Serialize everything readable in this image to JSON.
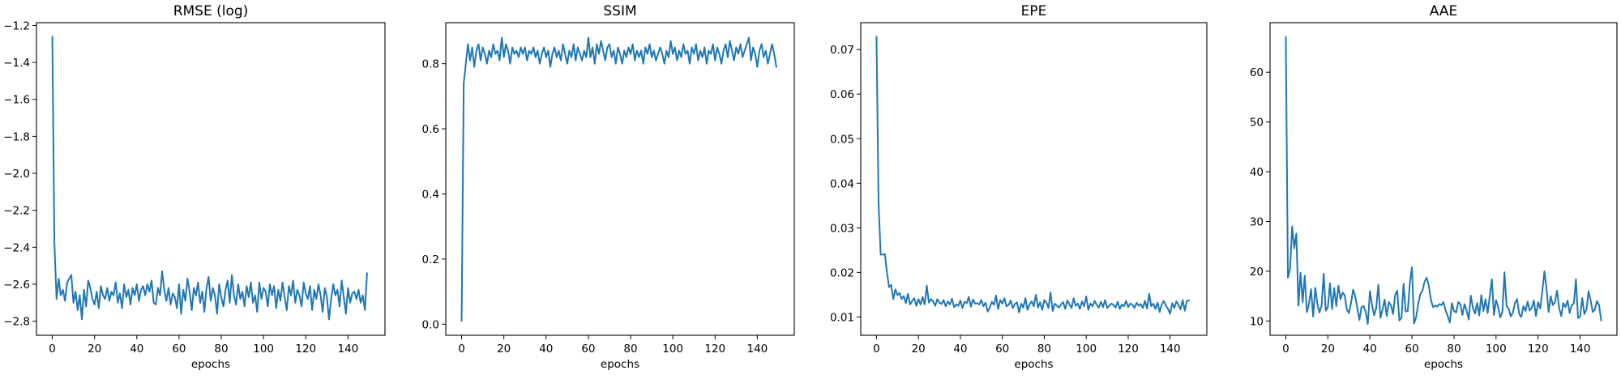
{
  "figure": {
    "background": "#ffffff",
    "line_color": "#1f77b4"
  },
  "chart_data": [
    {
      "type": "line",
      "title": "RMSE (log)",
      "xlabel": "epochs",
      "ylabel": "",
      "xlim": [
        -7.5,
        157.5
      ],
      "ylim": [
        -2.876,
        -1.185
      ],
      "xticks": [
        0,
        20,
        40,
        60,
        80,
        100,
        120,
        140
      ],
      "xtick_labels": [
        "0",
        "20",
        "40",
        "60",
        "80",
        "100",
        "120",
        "140"
      ],
      "yticks": [
        -2.8,
        -2.6,
        -2.4,
        -2.2,
        -2.0,
        -1.8,
        -1.6,
        -1.4,
        -1.2
      ],
      "ytick_labels": [
        "−2.8",
        "−2.6",
        "−2.4",
        "−2.2",
        "−2.0",
        "−1.8",
        "−1.6",
        "−1.4",
        "−1.2"
      ],
      "x_start": 0,
      "x_step": 1,
      "values": [
        -1.26,
        -2.38,
        -2.68,
        -2.57,
        -2.66,
        -2.63,
        -2.69,
        -2.59,
        -2.57,
        -2.55,
        -2.7,
        -2.64,
        -2.74,
        -2.66,
        -2.79,
        -2.63,
        -2.72,
        -2.58,
        -2.62,
        -2.68,
        -2.71,
        -2.64,
        -2.73,
        -2.61,
        -2.66,
        -2.68,
        -2.62,
        -2.69,
        -2.64,
        -2.66,
        -2.59,
        -2.7,
        -2.65,
        -2.73,
        -2.6,
        -2.67,
        -2.63,
        -2.71,
        -2.62,
        -2.66,
        -2.6,
        -2.69,
        -2.63,
        -2.61,
        -2.66,
        -2.6,
        -2.64,
        -2.58,
        -2.7,
        -2.71,
        -2.62,
        -2.66,
        -2.53,
        -2.63,
        -2.69,
        -2.62,
        -2.71,
        -2.65,
        -2.67,
        -2.73,
        -2.6,
        -2.76,
        -2.63,
        -2.69,
        -2.57,
        -2.64,
        -2.74,
        -2.62,
        -2.66,
        -2.59,
        -2.7,
        -2.64,
        -2.75,
        -2.62,
        -2.56,
        -2.69,
        -2.62,
        -2.66,
        -2.76,
        -2.6,
        -2.67,
        -2.72,
        -2.63,
        -2.58,
        -2.7,
        -2.55,
        -2.66,
        -2.71,
        -2.6,
        -2.68,
        -2.64,
        -2.72,
        -2.61,
        -2.67,
        -2.59,
        -2.7,
        -2.66,
        -2.75,
        -2.59,
        -2.68,
        -2.62,
        -2.64,
        -2.72,
        -2.6,
        -2.66,
        -2.61,
        -2.73,
        -2.63,
        -2.69,
        -2.59,
        -2.67,
        -2.74,
        -2.61,
        -2.66,
        -2.58,
        -2.7,
        -2.63,
        -2.66,
        -2.72,
        -2.59,
        -2.65,
        -2.68,
        -2.61,
        -2.74,
        -2.63,
        -2.68,
        -2.6,
        -2.66,
        -2.75,
        -2.62,
        -2.67,
        -2.79,
        -2.68,
        -2.6,
        -2.66,
        -2.63,
        -2.72,
        -2.58,
        -2.67,
        -2.76,
        -2.62,
        -2.7,
        -2.65,
        -2.64,
        -2.68,
        -2.63,
        -2.7,
        -2.66,
        -2.74,
        -2.54
      ]
    },
    {
      "type": "line",
      "title": "SSIM",
      "xlabel": "epochs",
      "ylabel": "",
      "xlim": [
        -7.5,
        157.5
      ],
      "ylim": [
        -0.034,
        0.926
      ],
      "xticks": [
        0,
        20,
        40,
        60,
        80,
        100,
        120,
        140
      ],
      "xtick_labels": [
        "0",
        "20",
        "40",
        "60",
        "80",
        "100",
        "120",
        "140"
      ],
      "yticks": [
        0.0,
        0.2,
        0.4,
        0.6,
        0.8
      ],
      "ytick_labels": [
        "0.0",
        "0.2",
        "0.4",
        "0.6",
        "0.8"
      ],
      "x_start": 0,
      "x_step": 1,
      "values": [
        0.01,
        0.74,
        0.8,
        0.86,
        0.81,
        0.85,
        0.79,
        0.84,
        0.86,
        0.81,
        0.85,
        0.83,
        0.8,
        0.84,
        0.82,
        0.86,
        0.83,
        0.84,
        0.81,
        0.88,
        0.82,
        0.86,
        0.84,
        0.8,
        0.85,
        0.83,
        0.84,
        0.82,
        0.85,
        0.83,
        0.85,
        0.81,
        0.84,
        0.83,
        0.85,
        0.82,
        0.84,
        0.8,
        0.83,
        0.85,
        0.82,
        0.84,
        0.79,
        0.83,
        0.85,
        0.82,
        0.84,
        0.81,
        0.86,
        0.83,
        0.8,
        0.84,
        0.82,
        0.86,
        0.81,
        0.85,
        0.83,
        0.81,
        0.84,
        0.82,
        0.88,
        0.82,
        0.85,
        0.8,
        0.86,
        0.83,
        0.87,
        0.84,
        0.81,
        0.85,
        0.86,
        0.82,
        0.84,
        0.8,
        0.85,
        0.83,
        0.8,
        0.84,
        0.82,
        0.85,
        0.83,
        0.86,
        0.81,
        0.84,
        0.82,
        0.84,
        0.8,
        0.85,
        0.83,
        0.86,
        0.82,
        0.84,
        0.81,
        0.83,
        0.85,
        0.83,
        0.8,
        0.84,
        0.82,
        0.87,
        0.83,
        0.85,
        0.81,
        0.84,
        0.82,
        0.86,
        0.83,
        0.84,
        0.8,
        0.85,
        0.83,
        0.86,
        0.81,
        0.84,
        0.82,
        0.85,
        0.8,
        0.84,
        0.83,
        0.86,
        0.81,
        0.85,
        0.83,
        0.8,
        0.84,
        0.86,
        0.82,
        0.87,
        0.84,
        0.81,
        0.85,
        0.83,
        0.86,
        0.82,
        0.84,
        0.86,
        0.88,
        0.81,
        0.85,
        0.83,
        0.79,
        0.84,
        0.86,
        0.82,
        0.84,
        0.8,
        0.83,
        0.86,
        0.83,
        0.79
      ]
    },
    {
      "type": "line",
      "title": "EPE",
      "xlabel": "epochs",
      "ylabel": "",
      "xlim": [
        -7.5,
        157.5
      ],
      "ylim": [
        0.00589,
        0.07603
      ],
      "xticks": [
        0,
        20,
        40,
        60,
        80,
        100,
        120,
        140
      ],
      "xtick_labels": [
        "0",
        "20",
        "40",
        "60",
        "80",
        "100",
        "120",
        "140"
      ],
      "yticks": [
        0.01,
        0.02,
        0.03,
        0.04,
        0.05,
        0.06,
        0.07
      ],
      "ytick_labels": [
        "0.01",
        "0.02",
        "0.03",
        "0.04",
        "0.05",
        "0.06",
        "0.07"
      ],
      "x_start": 0,
      "x_step": 1,
      "values": [
        0.0729,
        0.0355,
        0.024,
        0.024,
        0.0241,
        0.02,
        0.0167,
        0.0172,
        0.014,
        0.0162,
        0.0149,
        0.0154,
        0.014,
        0.0147,
        0.0131,
        0.0152,
        0.0128,
        0.0136,
        0.0142,
        0.0125,
        0.014,
        0.0128,
        0.0145,
        0.0128,
        0.017,
        0.0132,
        0.014,
        0.0135,
        0.0125,
        0.014,
        0.0132,
        0.0129,
        0.0138,
        0.0124,
        0.0135,
        0.0128,
        0.0141,
        0.0122,
        0.0128,
        0.0125,
        0.0137,
        0.012,
        0.0134,
        0.0131,
        0.0145,
        0.0123,
        0.0139,
        0.013,
        0.0131,
        0.0128,
        0.0138,
        0.0124,
        0.0132,
        0.0112,
        0.0121,
        0.0134,
        0.0127,
        0.0148,
        0.0118,
        0.0138,
        0.013,
        0.0142,
        0.0124,
        0.0127,
        0.0137,
        0.012,
        0.0129,
        0.0133,
        0.011,
        0.013,
        0.0121,
        0.0142,
        0.0116,
        0.0128,
        0.0135,
        0.0124,
        0.015,
        0.0121,
        0.0133,
        0.0116,
        0.0138,
        0.0132,
        0.012,
        0.0155,
        0.0113,
        0.013,
        0.0125,
        0.0121,
        0.0128,
        0.0133,
        0.0118,
        0.0137,
        0.0128,
        0.012,
        0.0142,
        0.0125,
        0.013,
        0.0118,
        0.0135,
        0.0124,
        0.0146,
        0.0116,
        0.013,
        0.0124,
        0.0136,
        0.0127,
        0.0121,
        0.0134,
        0.0122,
        0.0138,
        0.012,
        0.0125,
        0.013,
        0.0127,
        0.0121,
        0.0134,
        0.0118,
        0.0128,
        0.0124,
        0.0136,
        0.0122,
        0.013,
        0.0128,
        0.012,
        0.0132,
        0.0125,
        0.0129,
        0.012,
        0.0136,
        0.0119,
        0.0152,
        0.0124,
        0.013,
        0.0118,
        0.0132,
        0.0111,
        0.0128,
        0.0136,
        0.0125,
        0.0118,
        0.0107,
        0.0131,
        0.012,
        0.0135,
        0.0127,
        0.0117,
        0.0138,
        0.0114,
        0.0136,
        0.0137
      ]
    },
    {
      "type": "line",
      "title": "AAE",
      "xlabel": "epochs",
      "ylabel": "",
      "xlim": [
        -7.5,
        157.5
      ],
      "ylim": [
        7.13,
        69.96
      ],
      "xticks": [
        0,
        20,
        40,
        60,
        80,
        100,
        120,
        140
      ],
      "xtick_labels": [
        "0",
        "20",
        "40",
        "60",
        "80",
        "100",
        "120",
        "140"
      ],
      "yticks": [
        10,
        20,
        30,
        40,
        50,
        60
      ],
      "ytick_labels": [
        "10",
        "20",
        "30",
        "40",
        "50",
        "60"
      ],
      "x_start": 0,
      "x_step": 1,
      "values": [
        67.1,
        18.7,
        20.4,
        29.0,
        24.6,
        27.6,
        13.1,
        19.7,
        13.8,
        19.1,
        11.8,
        13.4,
        16.4,
        10.9,
        16.7,
        13.5,
        11.7,
        13.0,
        19.5,
        12.1,
        12.8,
        17.6,
        12.4,
        16.6,
        13.0,
        17.1,
        14.4,
        15.7,
        15.2,
        12.3,
        11.6,
        13.6,
        16.3,
        15.0,
        12.6,
        10.2,
        12.8,
        13.0,
        11.8,
        9.4,
        16.0,
        13.2,
        11.1,
        12.6,
        17.3,
        10.6,
        12.3,
        14.3,
        11.0,
        13.8,
        13.2,
        11.4,
        15.2,
        16.1,
        10.1,
        10.6,
        17.5,
        11.9,
        12.0,
        17.6,
        20.8,
        9.5,
        10.8,
        13.5,
        15.4,
        16.1,
        17.9,
        18.7,
        17.1,
        14.3,
        12.8,
        13.1,
        12.9,
        13.4,
        13.2,
        13.8,
        12.1,
        11.0,
        9.7,
        13.6,
        12.0,
        11.7,
        13.8,
        13.4,
        11.2,
        13.4,
        12.1,
        10.3,
        15.1,
        12.6,
        11.5,
        13.6,
        11.1,
        15.2,
        12.0,
        14.4,
        11.6,
        15.0,
        18.4,
        11.2,
        14.2,
        12.8,
        10.7,
        11.8,
        19.8,
        13.0,
        12.5,
        10.9,
        11.7,
        13.6,
        14.4,
        11.4,
        10.8,
        13.0,
        12.0,
        13.9,
        12.1,
        12.7,
        14.1,
        11.0,
        13.8,
        12.5,
        16.0,
        20.0,
        16.5,
        11.8,
        15.0,
        13.2,
        13.8,
        16.1,
        12.6,
        11.0,
        13.6,
        12.8,
        14.1,
        11.6,
        13.2,
        13.5,
        18.4,
        10.6,
        10.9,
        14.6,
        11.4,
        12.3,
        16.0,
        14.1,
        11.8,
        12.3,
        14.0,
        13.2,
        10.1
      ]
    }
  ]
}
